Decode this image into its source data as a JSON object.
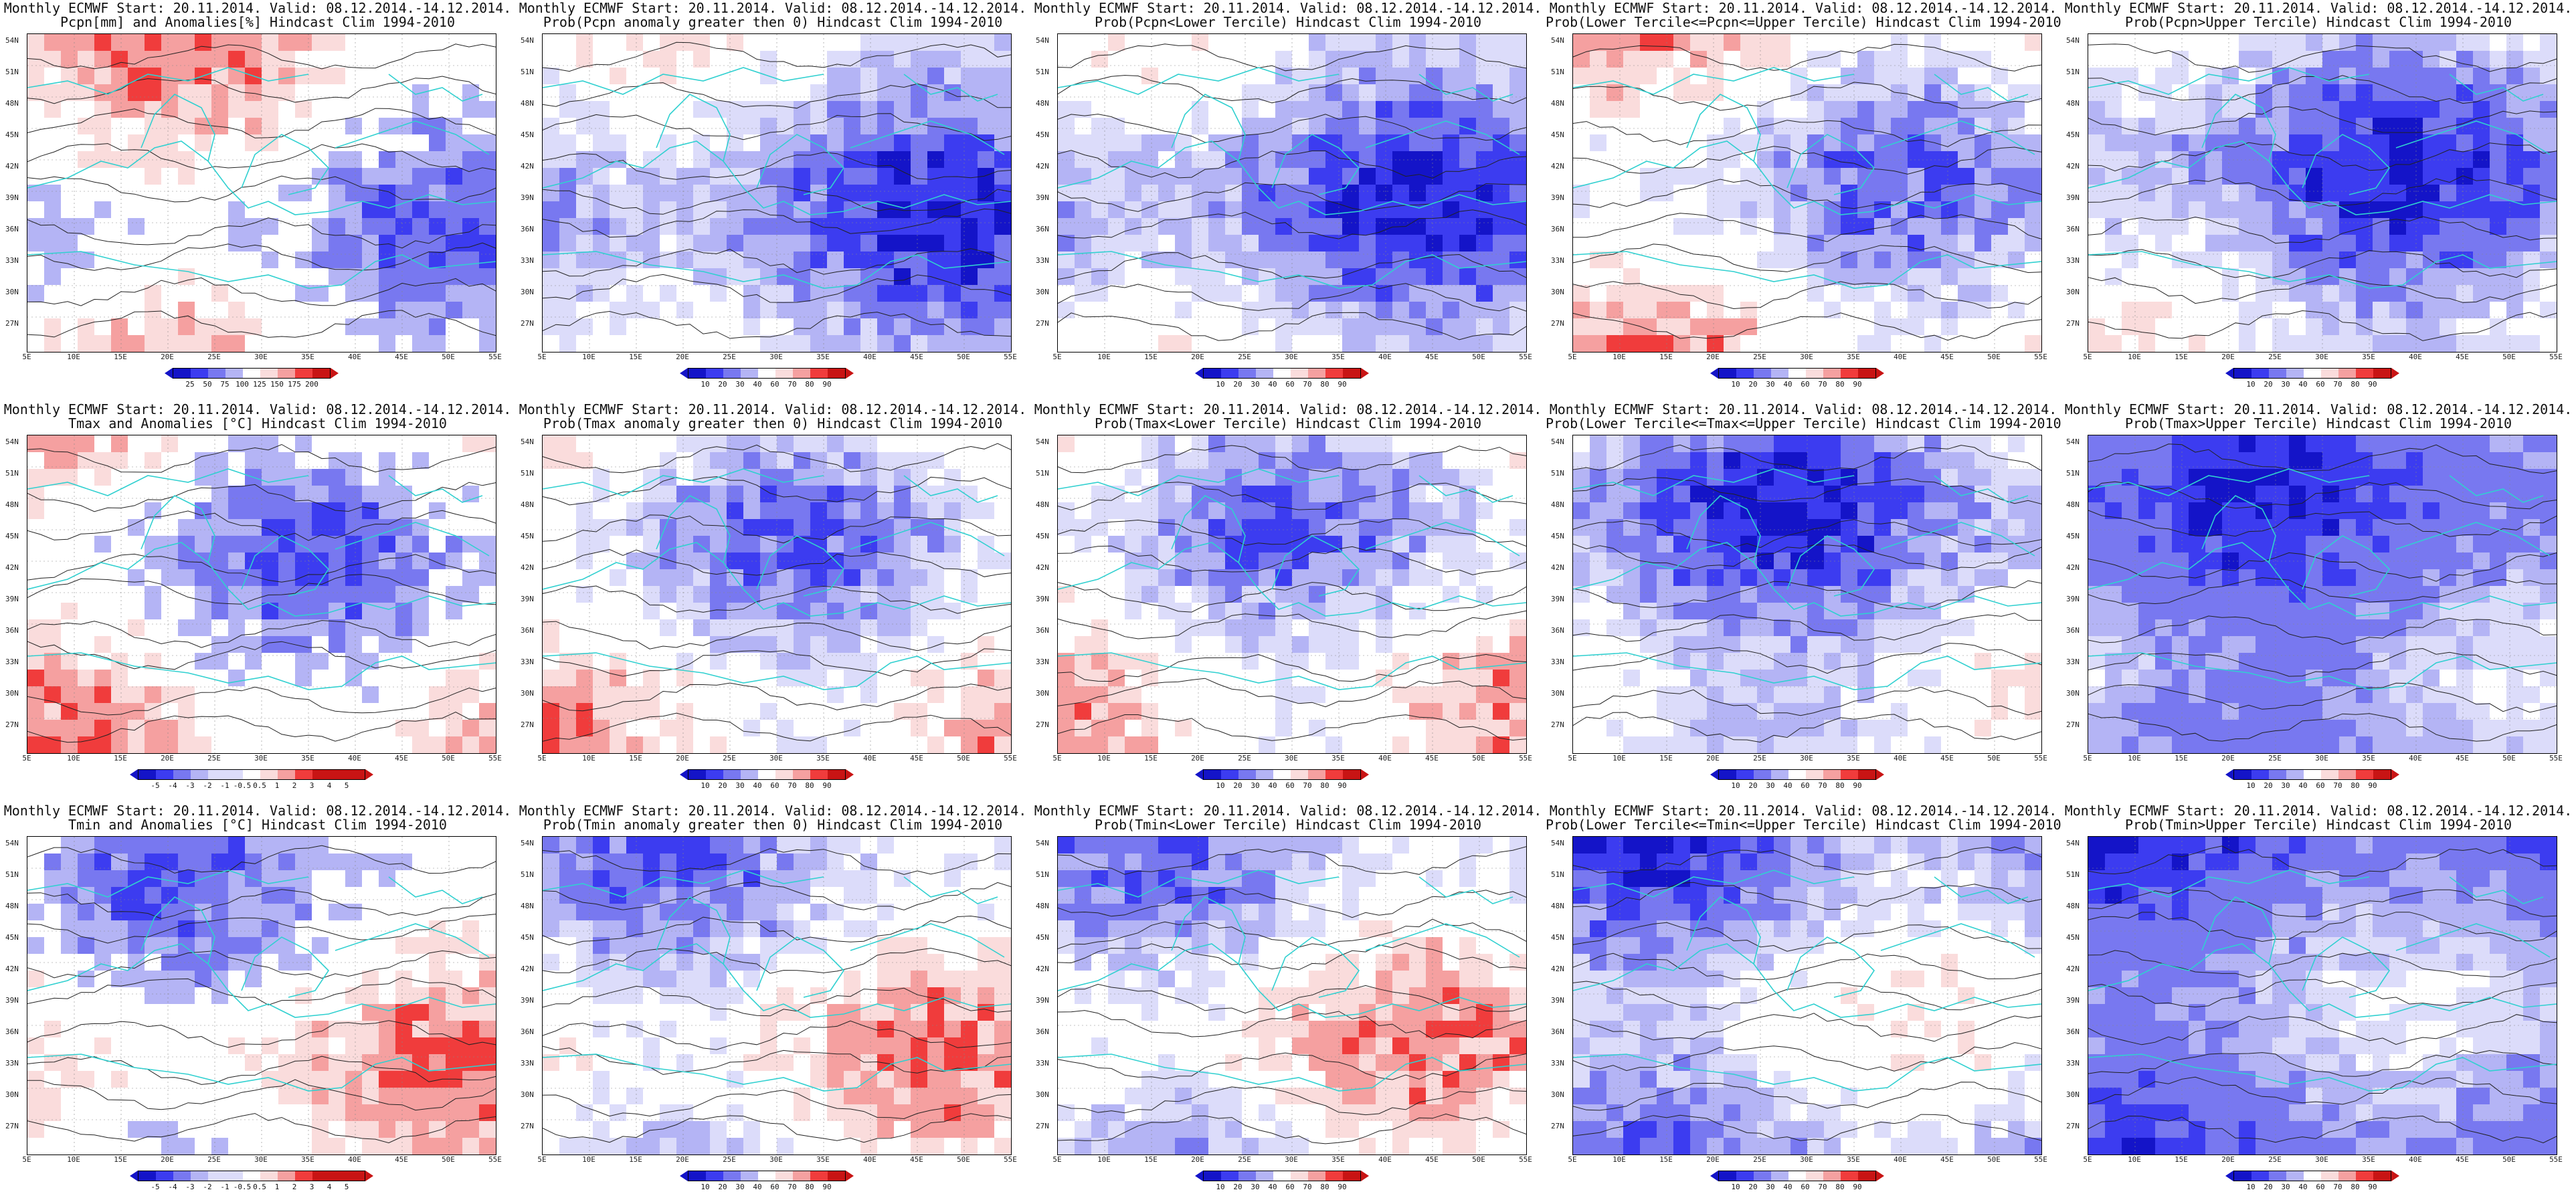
{
  "latitudes": [
    "54N",
    "51N",
    "48N",
    "45N",
    "42N",
    "39N",
    "36N",
    "33N",
    "30N",
    "27N"
  ],
  "longitudes": [
    "5E",
    "10E",
    "15E",
    "20E",
    "25E",
    "30E",
    "35E",
    "40E",
    "45E",
    "50E",
    "55E"
  ],
  "rows": [
    {
      "variable": "precipitation",
      "panels": [
        {
          "title1": "Monthly ECMWF Start: 20.11.2014. Valid: 08.12.2014.-14.12.2014.",
          "title2": "Pcpn[mm] and Anomalies[%] Hindcast Clim 1994-2010",
          "scheme": "anom",
          "scale": [
            "25",
            "50",
            "75",
            "100",
            "125",
            "150",
            "175",
            "200"
          ]
        },
        {
          "title1": "Monthly ECMWF Start: 20.11.2014. Valid: 08.12.2014.-14.12.2014.",
          "title2": "Prob(Pcpn anomaly greater then 0) Hindcast Clim 1994-2010",
          "scheme": "prob_low",
          "scale": [
            "10",
            "20",
            "30",
            "40",
            "60",
            "70",
            "80",
            "90"
          ]
        },
        {
          "title1": "Monthly ECMWF Start: 20.11.2014. Valid: 08.12.2014.-14.12.2014.",
          "title2": "Prob(Pcpn<Lower Tercile) Hindcast Clim 1994-2010",
          "scheme": "prob_low",
          "scale": [
            "10",
            "20",
            "30",
            "40",
            "60",
            "70",
            "80",
            "90"
          ]
        },
        {
          "title1": "Monthly ECMWF Start: 20.11.2014. Valid: 08.12.2014.-14.12.2014.",
          "title2": "Prob(Lower Tercile<=Pcpn<=Upper Tercile) Hindcast Clim 1994-2010",
          "scheme": "prob_mix",
          "scale": [
            "10",
            "20",
            "30",
            "40",
            "60",
            "70",
            "80",
            "90"
          ]
        },
        {
          "title1": "Monthly ECMWF Start: 20.11.2014. Valid: 08.12.2014.-14.12.2014.",
          "title2": "Prob(Pcpn>Upper Tercile) Hindcast Clim 1994-2010",
          "scheme": "prob_low",
          "scale": [
            "10",
            "20",
            "30",
            "40",
            "60",
            "70",
            "80",
            "90"
          ]
        }
      ]
    },
    {
      "variable": "tmax",
      "panels": [
        {
          "title1": "Monthly ECMWF Start: 20.11.2014. Valid: 08.12.2014.-14.12.2014.",
          "title2": "Tmax and Anomalies [°C] Hindcast Clim 1994-2010",
          "scheme": "anom",
          "scale": [
            "-5",
            "-4",
            "-3",
            "-2",
            "-1",
            "-0.5",
            "0.5",
            "1",
            "2",
            "3",
            "4",
            "5"
          ]
        },
        {
          "title1": "Monthly ECMWF Start: 20.11.2014. Valid: 08.12.2014.-14.12.2014.",
          "title2": "Prob(Tmax anomaly greater then 0) Hindcast Clim 1994-2010",
          "scheme": "prob_mix",
          "scale": [
            "10",
            "20",
            "30",
            "40",
            "60",
            "70",
            "80",
            "90"
          ]
        },
        {
          "title1": "Monthly ECMWF Start: 20.11.2014. Valid: 08.12.2014.-14.12.2014.",
          "title2": "Prob(Tmax<Lower Tercile) Hindcast Clim 1994-2010",
          "scheme": "prob_mix",
          "scale": [
            "10",
            "20",
            "30",
            "40",
            "60",
            "70",
            "80",
            "90"
          ]
        },
        {
          "title1": "Monthly ECMWF Start: 20.11.2014. Valid: 08.12.2014.-14.12.2014.",
          "title2": "Prob(Lower Tercile<=Tmax<=Upper Tercile) Hindcast Clim 1994-2010",
          "scheme": "prob_low",
          "scale": [
            "10",
            "20",
            "30",
            "40",
            "60",
            "70",
            "80",
            "90"
          ]
        },
        {
          "title1": "Monthly ECMWF Start: 20.11.2014. Valid: 08.12.2014.-14.12.2014.",
          "title2": "Prob(Tmax>Upper Tercile) Hindcast Clim 1994-2010",
          "scheme": "prob_deep",
          "scale": [
            "10",
            "20",
            "30",
            "40",
            "60",
            "70",
            "80",
            "90"
          ]
        }
      ]
    },
    {
      "variable": "tmin",
      "panels": [
        {
          "title1": "Monthly ECMWF Start: 20.11.2014. Valid: 08.12.2014.-14.12.2014.",
          "title2": "Tmin and Anomalies [°C] Hindcast Clim 1994-2010",
          "scheme": "anom",
          "scale": [
            "-5",
            "-4",
            "-3",
            "-2",
            "-1",
            "-0.5",
            "0.5",
            "1",
            "2",
            "3",
            "4",
            "5"
          ]
        },
        {
          "title1": "Monthly ECMWF Start: 20.11.2014. Valid: 08.12.2014.-14.12.2014.",
          "title2": "Prob(Tmin anomaly greater then 0) Hindcast Clim 1994-2010",
          "scheme": "prob_mix",
          "scale": [
            "10",
            "20",
            "30",
            "40",
            "60",
            "70",
            "80",
            "90"
          ]
        },
        {
          "title1": "Monthly ECMWF Start: 20.11.2014. Valid: 08.12.2014.-14.12.2014.",
          "title2": "Prob(Tmin<Lower Tercile) Hindcast Clim 1994-2010",
          "scheme": "prob_mix",
          "scale": [
            "10",
            "20",
            "30",
            "40",
            "60",
            "70",
            "80",
            "90"
          ]
        },
        {
          "title1": "Monthly ECMWF Start: 20.11.2014. Valid: 08.12.2014.-14.12.2014.",
          "title2": "Prob(Lower Tercile<=Tmin<=Upper Tercile) Hindcast Clim 1994-2010",
          "scheme": "prob_low",
          "scale": [
            "10",
            "20",
            "30",
            "40",
            "60",
            "70",
            "80",
            "90"
          ]
        },
        {
          "title1": "Monthly ECMWF Start: 20.11.2014. Valid: 08.12.2014.-14.12.2014.",
          "title2": "Prob(Tmin>Upper Tercile) Hindcast Clim 1994-2010",
          "scheme": "prob_deep",
          "scale": [
            "10",
            "20",
            "30",
            "40",
            "60",
            "70",
            "80",
            "90"
          ]
        }
      ]
    }
  ],
  "colors": {
    "deep_blue": "#1414c8",
    "blue": "#3c3cf0",
    "mid_blue": "#7878f0",
    "light_blue": "#b4b4f5",
    "pale_blue": "#dcdcfa",
    "white": "#ffffff",
    "pale_red": "#fadcdc",
    "light_red": "#f5a0a0",
    "red": "#f03c3c",
    "deep_red": "#c81414",
    "coastline": "#30d0d0",
    "contour": "#222222"
  }
}
